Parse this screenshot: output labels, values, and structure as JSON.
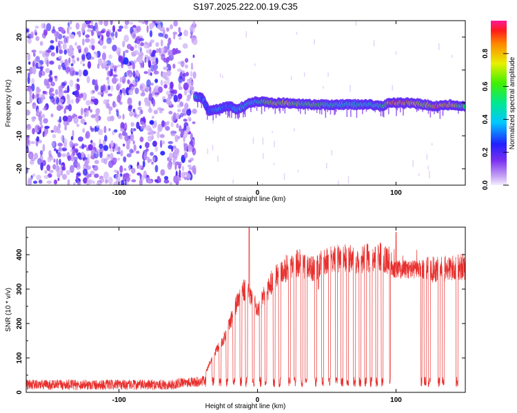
{
  "title": "S197.2025.222.00.19.C35",
  "chart_data": [
    {
      "type": "heatmap",
      "title": "S197.2025.222.00.19.C35",
      "xlabel": "Height of straight line (km)",
      "ylabel": "Frequency (Hz)",
      "xlim": [
        -167,
        150
      ],
      "ylim": [
        -25,
        25
      ],
      "xticks": [
        -100,
        0,
        100
      ],
      "yticks": [
        -20,
        -10,
        0,
        10,
        20
      ],
      "noise_region_km": [
        -167,
        -45
      ],
      "signal_ridge": {
        "x": [
          -45,
          -40,
          -35,
          -30,
          -25,
          -20,
          -15,
          -10,
          -5,
          0,
          10,
          20,
          40,
          60,
          80,
          90,
          95,
          100,
          110,
          120,
          130,
          140,
          150
        ],
        "freq": [
          2.0,
          1.5,
          -2.5,
          -2.0,
          -1.5,
          -1.0,
          -2.0,
          -1.0,
          0.0,
          0.5,
          0.0,
          0.0,
          -0.5,
          -0.5,
          -0.5,
          -1.0,
          0.0,
          0.0,
          0.0,
          -0.5,
          -1.0,
          -0.5,
          -1.0
        ],
        "amplitude": [
          0.45,
          0.35,
          0.3,
          0.4,
          0.4,
          0.35,
          0.45,
          0.5,
          0.45,
          0.5,
          0.8,
          0.75,
          0.65,
          0.5,
          0.5,
          0.55,
          0.9,
          0.95,
          0.9,
          0.7,
          0.9,
          0.85,
          0.6
        ]
      },
      "colorbar": {
        "label": "Normalized spectral amplitude",
        "range": [
          0.0,
          1.0
        ],
        "ticks": [
          0.0,
          0.2,
          0.4,
          0.6,
          0.8
        ],
        "tick_labels": [
          "0.0",
          "0.2",
          "0.4",
          "0.6",
          "0.8"
        ]
      }
    },
    {
      "type": "line",
      "xlabel": "Height of straight line (km)",
      "ylabel": "SNR (10 * v/v)",
      "xlim": [
        -167,
        150
      ],
      "ylim": [
        0,
        480
      ],
      "xticks": [
        -100,
        0,
        100
      ],
      "yticks": [
        0,
        100,
        200,
        300,
        400
      ],
      "color": "#e8302e",
      "series": [
        {
          "name": "SNR",
          "envelope": {
            "x": [
              -167,
              -100,
              -60,
              -55,
              -40,
              -35,
              -30,
              -25,
              -20,
              -15,
              -10,
              -5,
              0,
              5,
              10,
              15,
              20,
              25,
              30,
              35,
              40,
              50,
              60,
              70,
              80,
              90,
              100,
              110,
              120,
              130,
              140,
              150
            ],
            "y": [
              22,
              22,
              22,
              30,
              30,
              80,
              120,
              150,
              200,
              260,
              300,
              280,
              240,
              280,
              320,
              350,
              360,
              370,
              375,
              370,
              360,
              380,
              390,
              385,
              390,
              395,
              370,
              365,
              360,
              355,
              360,
              365
            ]
          },
          "spikes": [
            {
              "x": -6,
              "y": 478
            },
            {
              "x": 100,
              "y": 465
            },
            {
              "x": 44,
              "y": 300
            }
          ],
          "dropouts_x": [
            -38,
            -32,
            -27,
            -22,
            -17,
            -12,
            -8,
            -3,
            2,
            6,
            12,
            16,
            23,
            27,
            32,
            35,
            42,
            47,
            52,
            57,
            61,
            65,
            70,
            74,
            78,
            82,
            86,
            90,
            96,
            118,
            121,
            124,
            131,
            134,
            144
          ],
          "gap_range_km": [
            96,
            118
          ]
        }
      ]
    }
  ]
}
